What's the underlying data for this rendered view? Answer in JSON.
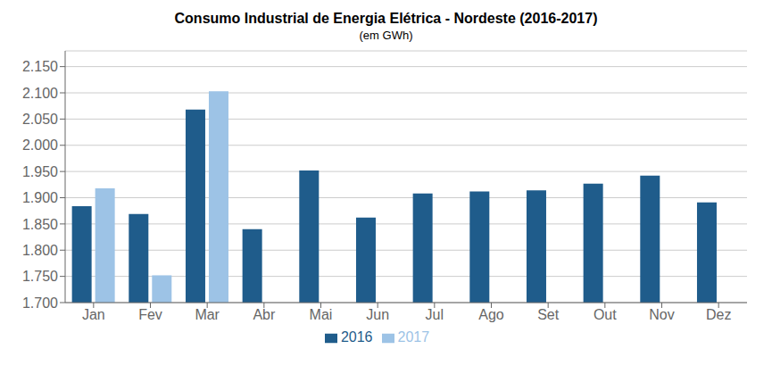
{
  "chart_data": {
    "type": "bar",
    "title": "Consumo Industrial de Energia Elétrica - Nordeste (2016-2017)",
    "subtitle": "(em GWh)",
    "categories": [
      "Jan",
      "Fev",
      "Mar",
      "Abr",
      "Mai",
      "Jun",
      "Jul",
      "Ago",
      "Set",
      "Out",
      "Nov",
      "Dez"
    ],
    "series": [
      {
        "name": "2016",
        "color": "#1F5C8B",
        "values": [
          1.884,
          1.869,
          2.068,
          1.84,
          1.952,
          1.862,
          1.908,
          1.912,
          1.914,
          1.927,
          1.942,
          1.891
        ]
      },
      {
        "name": "2017",
        "color": "#9DC3E6",
        "values": [
          1.918,
          1.752,
          2.103,
          null,
          null,
          null,
          null,
          null,
          null,
          null,
          null,
          null
        ]
      }
    ],
    "ylim": [
      1.7,
      2.18
    ],
    "yticks": [
      {
        "value": 1.7,
        "label": "1.700"
      },
      {
        "value": 1.75,
        "label": "1.750"
      },
      {
        "value": 1.8,
        "label": "1.800"
      },
      {
        "value": 1.85,
        "label": "1.850"
      },
      {
        "value": 1.9,
        "label": "1.900"
      },
      {
        "value": 1.95,
        "label": "1.950"
      },
      {
        "value": 2.0,
        "label": "2.000"
      },
      {
        "value": 2.05,
        "label": "2.050"
      },
      {
        "value": 2.1,
        "label": "2.100"
      },
      {
        "value": 2.15,
        "label": "2.150"
      }
    ],
    "grid": true,
    "legend": "bottom"
  }
}
